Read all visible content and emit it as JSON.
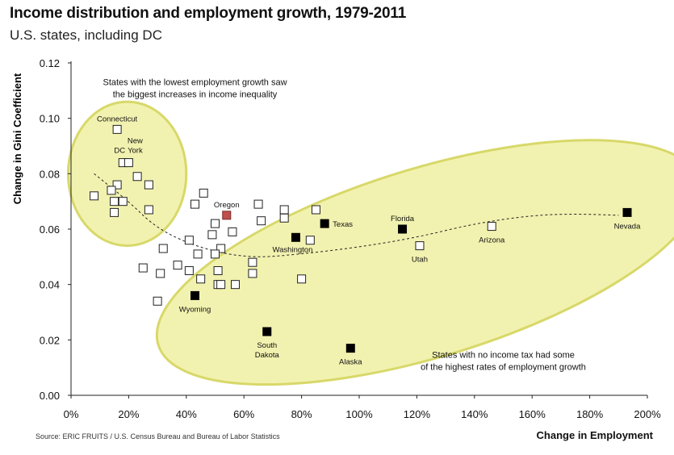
{
  "title": "Income distribution and employment growth, 1979-2011",
  "subtitle": "U.S. states, including DC",
  "source": "Source: ERIC FRUITS / U.S. Census Bureau and Bureau of Labor Statistics",
  "chart_data": {
    "type": "scatter",
    "xlabel": "Change in Employment",
    "ylabel": "Change in Gini Coefficient",
    "xlim": [
      0,
      2.0
    ],
    "ylim": [
      0,
      0.12
    ],
    "x_ticks": [
      "0%",
      "20%",
      "40%",
      "60%",
      "80%",
      "100%",
      "120%",
      "140%",
      "160%",
      "180%",
      "200%"
    ],
    "y_ticks": [
      "0.00",
      "0.02",
      "0.04",
      "0.06",
      "0.08",
      "0.10",
      "0.12"
    ],
    "grid": false,
    "colors": {
      "hollow": "#ffffff",
      "no_income_tax": "#000000",
      "oregon": "#c0504d",
      "ellipse_fill": "#f2f2b0",
      "ellipse_stroke": "#d8d86a"
    },
    "annotations": [
      {
        "lines": [
          "States with the lowest employment growth saw",
          "the biggest increases in income inequality"
        ],
        "x": 0.43,
        "y": 0.112
      },
      {
        "lines": [
          "States with no income tax had some",
          "of the highest rates of employment growth"
        ],
        "x": 1.5,
        "y": 0.0135
      }
    ],
    "ellipses": [
      {
        "cx": 0.195,
        "cy": 0.08,
        "rx": 0.205,
        "ry": 0.026,
        "rotate": 0
      },
      {
        "cx": 1.24,
        "cy": 0.048,
        "rx": 0.98,
        "ry": 0.034,
        "rotate": -17
      }
    ],
    "trend": [
      [
        0.08,
        0.08
      ],
      [
        0.2,
        0.07
      ],
      [
        0.3,
        0.06
      ],
      [
        0.45,
        0.053
      ],
      [
        0.62,
        0.0495
      ],
      [
        0.8,
        0.051
      ],
      [
        1.0,
        0.0535
      ],
      [
        1.2,
        0.057
      ],
      [
        1.4,
        0.062
      ],
      [
        1.6,
        0.065
      ],
      [
        1.75,
        0.0655
      ],
      [
        1.9,
        0.065
      ]
    ],
    "points": [
      {
        "x": 0.16,
        "y": 0.096,
        "kind": "hollow",
        "label": "Connecticut",
        "label_pos": "above"
      },
      {
        "x": 0.18,
        "y": 0.084,
        "kind": "hollow",
        "label": "DC",
        "label_pos": "above-left"
      },
      {
        "x": 0.2,
        "y": 0.084,
        "kind": "hollow",
        "label": "New York",
        "label_pos": "above-right"
      },
      {
        "x": 0.23,
        "y": 0.079,
        "kind": "hollow"
      },
      {
        "x": 0.27,
        "y": 0.076,
        "kind": "hollow"
      },
      {
        "x": 0.16,
        "y": 0.076,
        "kind": "hollow"
      },
      {
        "x": 0.14,
        "y": 0.074,
        "kind": "hollow"
      },
      {
        "x": 0.08,
        "y": 0.072,
        "kind": "hollow"
      },
      {
        "x": 0.15,
        "y": 0.07,
        "kind": "hollow"
      },
      {
        "x": 0.18,
        "y": 0.07,
        "kind": "hollow"
      },
      {
        "x": 0.15,
        "y": 0.066,
        "kind": "hollow"
      },
      {
        "x": 0.27,
        "y": 0.067,
        "kind": "hollow"
      },
      {
        "x": 0.46,
        "y": 0.073,
        "kind": "hollow"
      },
      {
        "x": 0.43,
        "y": 0.069,
        "kind": "hollow"
      },
      {
        "x": 0.54,
        "y": 0.065,
        "kind": "oregon",
        "label": "Oregon",
        "label_pos": "above"
      },
      {
        "x": 0.5,
        "y": 0.062,
        "kind": "hollow"
      },
      {
        "x": 0.56,
        "y": 0.059,
        "kind": "hollow"
      },
      {
        "x": 0.49,
        "y": 0.058,
        "kind": "hollow"
      },
      {
        "x": 0.41,
        "y": 0.056,
        "kind": "hollow"
      },
      {
        "x": 0.52,
        "y": 0.053,
        "kind": "hollow"
      },
      {
        "x": 0.5,
        "y": 0.051,
        "kind": "hollow"
      },
      {
        "x": 0.44,
        "y": 0.051,
        "kind": "hollow"
      },
      {
        "x": 0.32,
        "y": 0.053,
        "kind": "hollow"
      },
      {
        "x": 0.37,
        "y": 0.047,
        "kind": "hollow"
      },
      {
        "x": 0.41,
        "y": 0.045,
        "kind": "hollow"
      },
      {
        "x": 0.51,
        "y": 0.045,
        "kind": "hollow"
      },
      {
        "x": 0.25,
        "y": 0.046,
        "kind": "hollow"
      },
      {
        "x": 0.31,
        "y": 0.044,
        "kind": "hollow"
      },
      {
        "x": 0.45,
        "y": 0.042,
        "kind": "hollow"
      },
      {
        "x": 0.51,
        "y": 0.04,
        "kind": "hollow"
      },
      {
        "x": 0.52,
        "y": 0.04,
        "kind": "hollow"
      },
      {
        "x": 0.57,
        "y": 0.04,
        "kind": "hollow"
      },
      {
        "x": 0.3,
        "y": 0.034,
        "kind": "hollow"
      },
      {
        "x": 0.63,
        "y": 0.048,
        "kind": "hollow"
      },
      {
        "x": 0.63,
        "y": 0.044,
        "kind": "hollow"
      },
      {
        "x": 0.65,
        "y": 0.069,
        "kind": "hollow"
      },
      {
        "x": 0.66,
        "y": 0.063,
        "kind": "hollow"
      },
      {
        "x": 0.74,
        "y": 0.067,
        "kind": "hollow"
      },
      {
        "x": 0.74,
        "y": 0.064,
        "kind": "hollow"
      },
      {
        "x": 0.85,
        "y": 0.067,
        "kind": "hollow"
      },
      {
        "x": 0.83,
        "y": 0.056,
        "kind": "hollow"
      },
      {
        "x": 0.8,
        "y": 0.042,
        "kind": "hollow"
      },
      {
        "x": 1.21,
        "y": 0.054,
        "kind": "hollow",
        "label": "Utah",
        "label_pos": "below"
      },
      {
        "x": 1.46,
        "y": 0.061,
        "kind": "hollow",
        "label": "Arizona",
        "label_pos": "below"
      },
      {
        "x": 0.43,
        "y": 0.036,
        "kind": "filled",
        "label": "Wyoming",
        "label_pos": "below"
      },
      {
        "x": 0.78,
        "y": 0.057,
        "kind": "filled",
        "label": "Washington",
        "label_pos": "below-left"
      },
      {
        "x": 0.88,
        "y": 0.062,
        "kind": "filled",
        "label": "Texas",
        "label_pos": "right"
      },
      {
        "x": 1.15,
        "y": 0.06,
        "kind": "filled",
        "label": "Florida",
        "label_pos": "above"
      },
      {
        "x": 1.93,
        "y": 0.066,
        "kind": "filled",
        "label": "Nevada",
        "label_pos": "below"
      },
      {
        "x": 0.68,
        "y": 0.023,
        "kind": "filled",
        "label": "South Dakota",
        "label_pos": "below"
      },
      {
        "x": 0.97,
        "y": 0.017,
        "kind": "filled",
        "label": "Alaska",
        "label_pos": "below"
      }
    ]
  }
}
